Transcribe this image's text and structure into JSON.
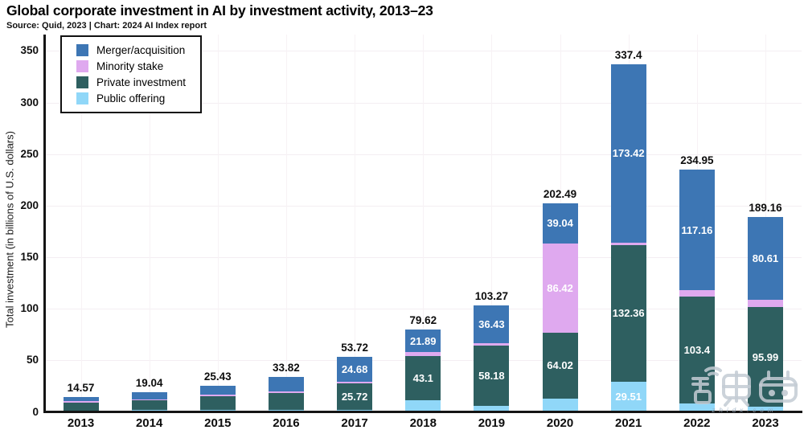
{
  "header": {
    "title": "Global corporate investment in AI by investment activity, 2013–23",
    "subtitle": "Source: Quid, 2023 | Chart: 2024 AI Index report"
  },
  "watermark": {
    "logo_text": "智东西",
    "caption": "zhidx.com"
  },
  "chart_data": {
    "type": "bar",
    "stacked": true,
    "title": "Global corporate investment in AI by investment activity, 2013–23",
    "subtitle": "Source: Quid, 2023 | Chart: 2024 AI Index report",
    "xlabel": "",
    "ylabel": "Total investment (in billions of U.S. dollars)",
    "ylim": [
      0,
      350
    ],
    "yticks": [
      0,
      50,
      100,
      150,
      200,
      250,
      300,
      350
    ],
    "grid": "faint horizontal and vertical gridlines",
    "legend_position": "top-left boxed",
    "categories": [
      "2013",
      "2014",
      "2015",
      "2016",
      "2017",
      "2018",
      "2019",
      "2020",
      "2021",
      "2022",
      "2023"
    ],
    "stack_order_bottom_to_top": [
      "Public offering",
      "Private investment",
      "Minority stake",
      "Merger/acquisition"
    ],
    "totals": [
      14.57,
      19.04,
      25.43,
      33.82,
      53.72,
      79.62,
      103.27,
      202.49,
      337.4,
      234.95,
      189.16
    ],
    "total_labels": [
      "14.57",
      "19.04",
      "25.43",
      "33.82",
      "53.72",
      "79.62",
      "103.27",
      "202.49",
      "337.4",
      "234.95",
      "189.16"
    ],
    "series": [
      {
        "name": "Merger/acquisition",
        "color": "#3D76B4",
        "values": [
          4.3,
          7.2,
          8.5,
          13.8,
          24.68,
          21.89,
          36.43,
          39.04,
          173.42,
          117.16,
          80.61
        ],
        "segment_labels": [
          null,
          null,
          null,
          null,
          "24.68",
          "21.89",
          "36.43",
          "39.04",
          "173.42",
          "117.16",
          "80.61"
        ]
      },
      {
        "name": "Minority stake",
        "color": "#DFA9EF",
        "values": [
          1.1,
          0.8,
          1.5,
          1.5,
          1.3,
          3.2,
          2.7,
          86.42,
          2.11,
          6.0,
          7.2
        ],
        "segment_labels": [
          null,
          null,
          null,
          null,
          null,
          null,
          null,
          "86.42",
          null,
          null,
          null
        ]
      },
      {
        "name": "Private investment",
        "color": "#2E5F60",
        "values": [
          8.0,
          9.2,
          13.5,
          16.9,
          25.72,
          43.1,
          58.18,
          64.02,
          132.36,
          103.4,
          95.99
        ],
        "segment_labels": [
          null,
          null,
          null,
          null,
          "25.72",
          "43.1",
          "58.18",
          "64.02",
          "132.36",
          "103.4",
          "95.99"
        ]
      },
      {
        "name": "Public offering",
        "color": "#90D7F8",
        "values": [
          1.2,
          1.9,
          1.9,
          1.6,
          2.02,
          11.41,
          5.96,
          13.01,
          29.51,
          8.39,
          5.36
        ],
        "segment_labels": [
          null,
          null,
          null,
          null,
          null,
          null,
          null,
          null,
          "29.51",
          null,
          null
        ]
      }
    ]
  }
}
